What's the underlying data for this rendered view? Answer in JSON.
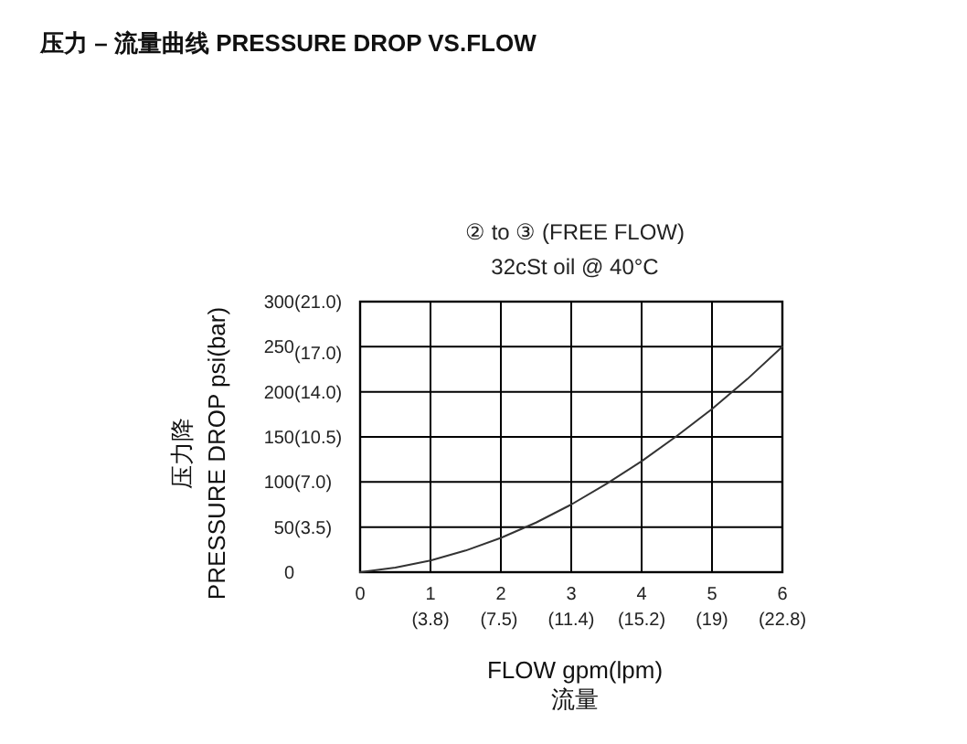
{
  "chart_data": {
    "type": "line",
    "title": "压力 – 流量曲线 PRESSURE DROP VS.FLOW",
    "subtitle": "② to ③ (FREE FLOW)\n32cSt oil @ 40°C",
    "xlabel": "FLOW   gpm(lpm)\n流量",
    "ylabel": "压力降\nPRESSURE DROP  psi(bar)",
    "x": [
      0,
      0.5,
      1,
      1.5,
      2,
      2.5,
      3,
      3.5,
      4,
      4.5,
      5,
      5.5,
      6
    ],
    "series": [
      {
        "color": "#333333",
        "values": [
          0,
          5,
          13,
          24,
          38,
          55,
          75,
          98,
          123,
          151,
          181,
          214,
          250
        ]
      }
    ],
    "xlim": [
      0,
      6
    ],
    "ylim": [
      0,
      300
    ],
    "xticks": [
      0,
      1,
      2,
      3,
      4,
      5,
      6
    ],
    "x2lim": [
      0,
      22.8
    ],
    "x2ticks": [
      {
        "value": 3.8,
        "label": "(3.8)"
      },
      {
        "value": 7.5,
        "label": "(7.5)"
      },
      {
        "value": 11.4,
        "label": "(11.4)"
      },
      {
        "value": 15.2,
        "label": "(15.2)"
      },
      {
        "value": 19,
        "label": "(19)"
      },
      {
        "value": 22.8,
        "label": "(22.8)"
      }
    ],
    "yticks": [
      0,
      50,
      100,
      150,
      200,
      250,
      300
    ],
    "y2lim": [
      0,
      21
    ],
    "y2ticks": [
      {
        "value": 3.5,
        "label": "(3.5)"
      },
      {
        "value": 7.0,
        "label": "(7.0)"
      },
      {
        "value": 10.5,
        "label": "(10.5)"
      },
      {
        "value": 14.0,
        "label": "(14.0)"
      },
      {
        "value": 17.0,
        "label": "(17.0)"
      },
      {
        "value": 21.0,
        "label": "(21.0)"
      }
    ],
    "grid": true,
    "marker": "none",
    "line_style": "solid"
  }
}
